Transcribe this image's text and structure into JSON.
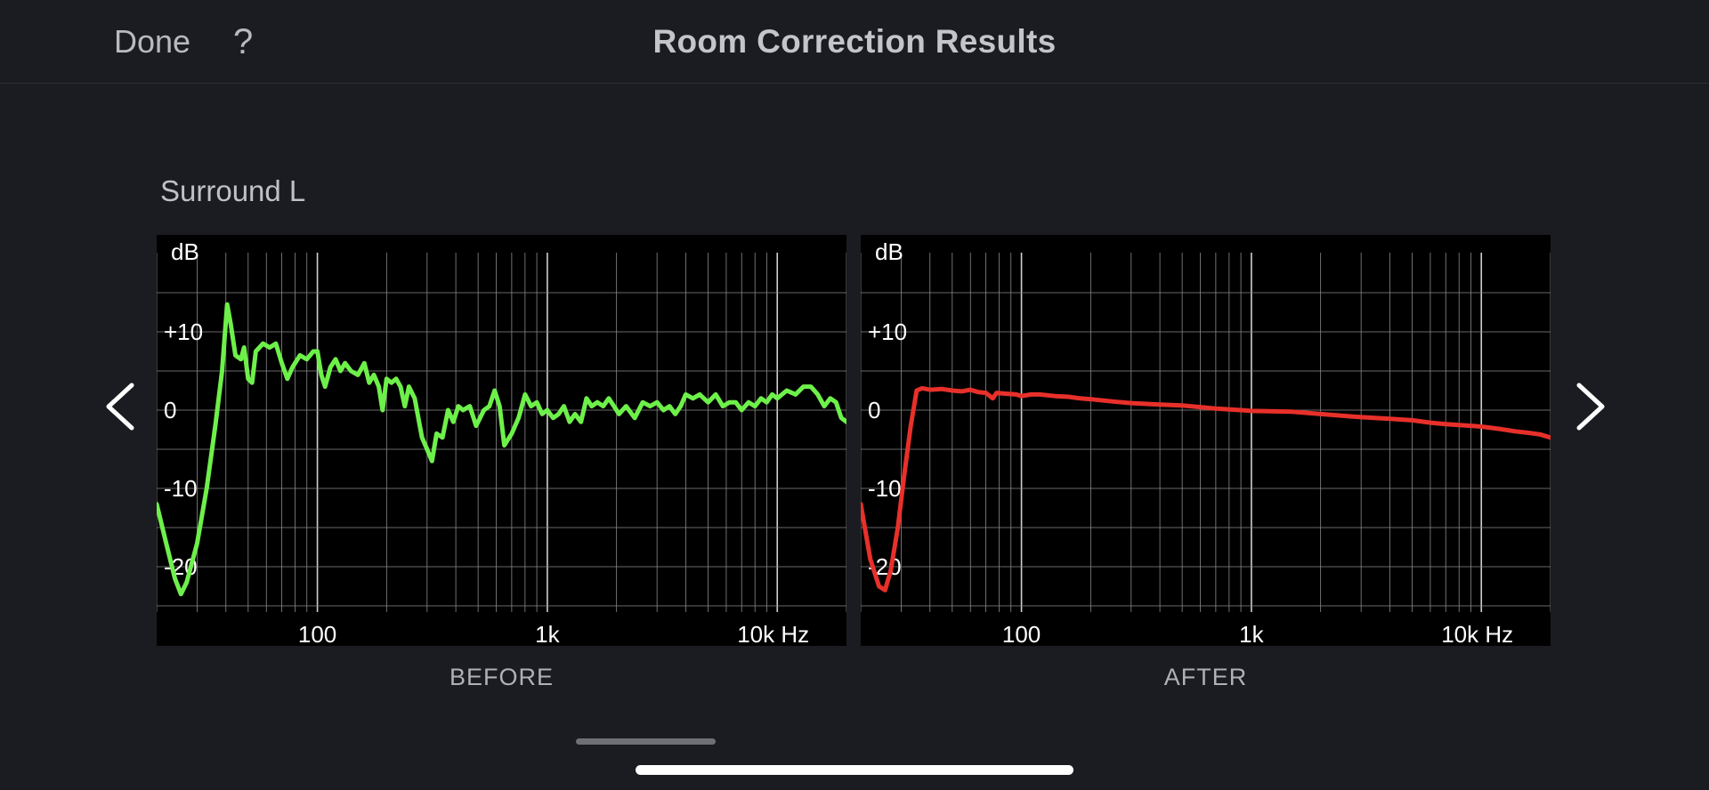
{
  "header": {
    "done_label": "Done",
    "help_label": "?",
    "title": "Room Correction Results"
  },
  "channel_label": "Surround L",
  "nav": {
    "prev_icon": "chevron-left-icon",
    "next_icon": "chevron-right-icon"
  },
  "colors": {
    "background": "#1b1c21",
    "before_curve": "#6ef04a",
    "after_curve": "#e8302a",
    "grid": "#8a8a8a"
  },
  "chart_data": [
    {
      "type": "line",
      "name": "before",
      "caption": "BEFORE",
      "ylabel": "dB",
      "xscale": "log",
      "xlim": [
        20,
        20000
      ],
      "ylim": [
        -25,
        15
      ],
      "x_tick_labels": [
        {
          "value": 100,
          "label": "100"
        },
        {
          "value": 1000,
          "label": "1k"
        },
        {
          "value": 10000,
          "label": "10k Hz"
        }
      ],
      "y_tick_labels": [
        {
          "value": 10,
          "label": "+10"
        },
        {
          "value": 0,
          "label": "0"
        },
        {
          "value": -10,
          "label": "-10"
        },
        {
          "value": -20,
          "label": "-20"
        }
      ],
      "grid": true,
      "color": "#6ef04a",
      "points": [
        [
          20,
          -12
        ],
        [
          22,
          -17
        ],
        [
          24,
          -21.5
        ],
        [
          25.5,
          -23.5
        ],
        [
          27,
          -22
        ],
        [
          30,
          -17
        ],
        [
          33,
          -10
        ],
        [
          36,
          -2
        ],
        [
          38.5,
          5
        ],
        [
          40.5,
          13.5
        ],
        [
          42,
          11
        ],
        [
          44,
          7
        ],
        [
          46.5,
          6.5
        ],
        [
          48,
          8
        ],
        [
          50,
          4
        ],
        [
          52,
          3.5
        ],
        [
          54,
          7.5
        ],
        [
          58,
          8.5
        ],
        [
          62,
          8
        ],
        [
          66,
          8.5
        ],
        [
          70,
          6
        ],
        [
          74,
          4
        ],
        [
          78,
          5.5
        ],
        [
          84,
          7
        ],
        [
          90,
          6.5
        ],
        [
          96,
          7.5
        ],
        [
          100,
          7.5
        ],
        [
          104,
          4.5
        ],
        [
          108,
          3
        ],
        [
          114,
          5.5
        ],
        [
          120,
          6.5
        ],
        [
          126,
          5
        ],
        [
          132,
          6
        ],
        [
          140,
          5
        ],
        [
          150,
          4.5
        ],
        [
          160,
          6
        ],
        [
          168,
          3.5
        ],
        [
          176,
          4.5
        ],
        [
          185,
          3
        ],
        [
          192,
          0
        ],
        [
          200,
          4
        ],
        [
          210,
          3.5
        ],
        [
          220,
          4
        ],
        [
          230,
          3
        ],
        [
          240,
          0.5
        ],
        [
          250,
          3
        ],
        [
          265,
          1.5
        ],
        [
          285,
          -3.5
        ],
        [
          300,
          -5
        ],
        [
          315,
          -6.5
        ],
        [
          330,
          -3
        ],
        [
          350,
          -3.5
        ],
        [
          370,
          0
        ],
        [
          390,
          -1.5
        ],
        [
          410,
          0.5
        ],
        [
          430,
          0
        ],
        [
          460,
          0.5
        ],
        [
          490,
          -2
        ],
        [
          530,
          0
        ],
        [
          560,
          0.5
        ],
        [
          590,
          2.5
        ],
        [
          620,
          0.5
        ],
        [
          650,
          -4.5
        ],
        [
          700,
          -3
        ],
        [
          750,
          -1
        ],
        [
          800,
          2
        ],
        [
          850,
          0.5
        ],
        [
          900,
          1
        ],
        [
          950,
          -0.5
        ],
        [
          1000,
          0
        ],
        [
          1060,
          -1
        ],
        [
          1120,
          -0.5
        ],
        [
          1180,
          0.5
        ],
        [
          1250,
          -1.5
        ],
        [
          1320,
          -0.5
        ],
        [
          1400,
          -1.5
        ],
        [
          1480,
          1.5
        ],
        [
          1560,
          0.5
        ],
        [
          1650,
          1
        ],
        [
          1750,
          0.5
        ],
        [
          1850,
          1.5
        ],
        [
          1950,
          0.5
        ],
        [
          2050,
          -0.5
        ],
        [
          2200,
          0.5
        ],
        [
          2400,
          -1
        ],
        [
          2600,
          1
        ],
        [
          2800,
          0.5
        ],
        [
          3000,
          1
        ],
        [
          3200,
          0
        ],
        [
          3400,
          0.5
        ],
        [
          3600,
          -0.5
        ],
        [
          3800,
          0.5
        ],
        [
          4000,
          2
        ],
        [
          4300,
          1.5
        ],
        [
          4600,
          2
        ],
        [
          5000,
          1
        ],
        [
          5400,
          2
        ],
        [
          5800,
          0.5
        ],
        [
          6200,
          1
        ],
        [
          6600,
          1
        ],
        [
          7000,
          0
        ],
        [
          7500,
          1
        ],
        [
          8000,
          0.5
        ],
        [
          8500,
          1.5
        ],
        [
          9000,
          1
        ],
        [
          9500,
          2
        ],
        [
          10000,
          1.5
        ],
        [
          11000,
          2.5
        ],
        [
          12000,
          2
        ],
        [
          13000,
          3
        ],
        [
          14000,
          3
        ],
        [
          15000,
          2
        ],
        [
          16000,
          0.5
        ],
        [
          17000,
          1.5
        ],
        [
          18000,
          1
        ],
        [
          19000,
          -1
        ],
        [
          20000,
          -1.5
        ]
      ]
    },
    {
      "type": "line",
      "name": "after",
      "caption": "AFTER",
      "ylabel": "dB",
      "xscale": "log",
      "xlim": [
        20,
        20000
      ],
      "ylim": [
        -25,
        15
      ],
      "x_tick_labels": [
        {
          "value": 100,
          "label": "100"
        },
        {
          "value": 1000,
          "label": "1k"
        },
        {
          "value": 10000,
          "label": "10k Hz"
        }
      ],
      "y_tick_labels": [
        {
          "value": 10,
          "label": "+10"
        },
        {
          "value": 0,
          "label": "0"
        },
        {
          "value": -10,
          "label": "-10"
        },
        {
          "value": -20,
          "label": "-20"
        }
      ],
      "grid": true,
      "color": "#e8302a",
      "points": [
        [
          20,
          -12
        ],
        [
          22,
          -19
        ],
        [
          24,
          -22.5
        ],
        [
          25.5,
          -23
        ],
        [
          27,
          -20.5
        ],
        [
          29,
          -15
        ],
        [
          31,
          -8
        ],
        [
          33,
          -2
        ],
        [
          35,
          2.5
        ],
        [
          37,
          2.8
        ],
        [
          40,
          2.6
        ],
        [
          45,
          2.7
        ],
        [
          50,
          2.5
        ],
        [
          55,
          2.4
        ],
        [
          60,
          2.6
        ],
        [
          65,
          2.3
        ],
        [
          70,
          2.2
        ],
        [
          75,
          1.5
        ],
        [
          78,
          2.2
        ],
        [
          85,
          2.1
        ],
        [
          95,
          2
        ],
        [
          100,
          1.8
        ],
        [
          110,
          2
        ],
        [
          120,
          2
        ],
        [
          140,
          1.8
        ],
        [
          160,
          1.7
        ],
        [
          180,
          1.5
        ],
        [
          200,
          1.4
        ],
        [
          250,
          1.1
        ],
        [
          300,
          0.9
        ],
        [
          400,
          0.7
        ],
        [
          500,
          0.6
        ],
        [
          700,
          0.2
        ],
        [
          900,
          0
        ],
        [
          1000,
          -0.1
        ],
        [
          1500,
          -0.2
        ],
        [
          2000,
          -0.5
        ],
        [
          3000,
          -0.9
        ],
        [
          4000,
          -1.1
        ],
        [
          5000,
          -1.3
        ],
        [
          6000,
          -1.6
        ],
        [
          7000,
          -1.8
        ],
        [
          8000,
          -1.9
        ],
        [
          10000,
          -2.1
        ],
        [
          12000,
          -2.4
        ],
        [
          14000,
          -2.7
        ],
        [
          16000,
          -2.9
        ],
        [
          18000,
          -3.1
        ],
        [
          20000,
          -3.5
        ]
      ]
    }
  ]
}
